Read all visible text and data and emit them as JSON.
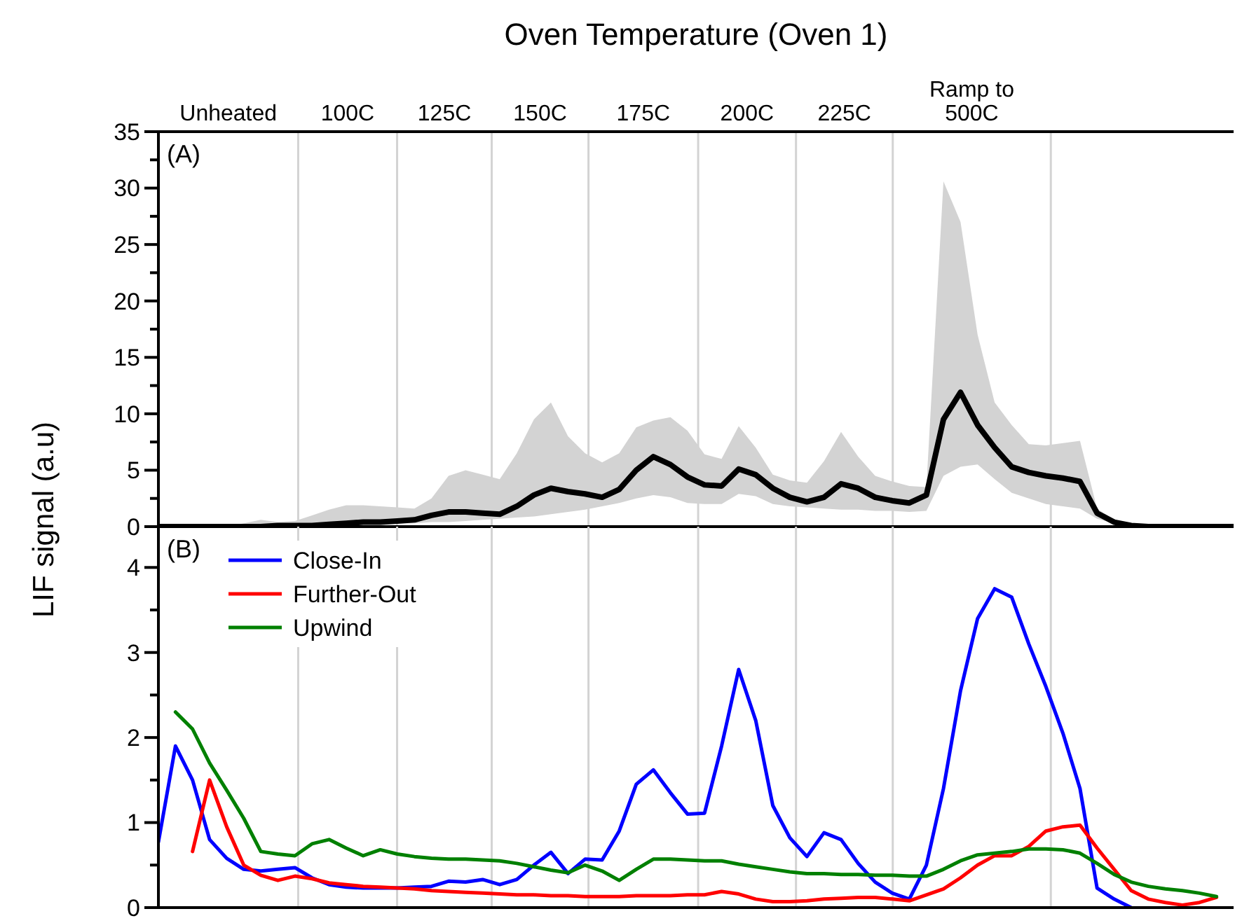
{
  "chart_data": [
    {
      "type": "line",
      "title": "Oven Temperature (Oven 1)",
      "ylabel": "LIF signal (a.u)",
      "annotations": [
        "(A)",
        "Unheated",
        "100C",
        "125C",
        "150C",
        "175C",
        "200C",
        "225C",
        "Ramp to\n500C"
      ],
      "categories": [
        null,
        null,
        null,
        null,
        null,
        null,
        null,
        null,
        null,
        null,
        null,
        null,
        null,
        null,
        null,
        null,
        null,
        null,
        null,
        null,
        null,
        null,
        null,
        null,
        null,
        null,
        null,
        null,
        null,
        null,
        null,
        null,
        null,
        null,
        null,
        null,
        null,
        null,
        null,
        null,
        null,
        null,
        null,
        null,
        null,
        null,
        null,
        null,
        null,
        null,
        null,
        null,
        null,
        null,
        null,
        null,
        null,
        null,
        null,
        null,
        null,
        null,
        null,
        null
      ],
      "ylim": [
        0,
        35
      ],
      "yticks": [
        0,
        {
          "value": 2.5,
          "label": null
        },
        5,
        {
          "value": 7.5,
          "label": null
        },
        10,
        {
          "value": 12.5,
          "label": null
        },
        15,
        {
          "value": 17.5,
          "label": null
        },
        20,
        {
          "value": 22.5,
          "label": null
        },
        25,
        {
          "value": 27.5,
          "label": null
        },
        30,
        {
          "value": 32.5,
          "label": null
        },
        35
      ],
      "tick_labels": "y",
      "grid": false,
      "legend": false,
      "series": [
        {
          "color": "#000000",
          "values": [
            0,
            0,
            0,
            0,
            0,
            0,
            0,
            0.1,
            0.1,
            0.1,
            0.2,
            0.3,
            0.4,
            0.4,
            0.5,
            0.6,
            1.0,
            1.3,
            1.3,
            1.2,
            1.1,
            1.8,
            2.8,
            3.4,
            3.1,
            2.9,
            2.6,
            3.3,
            5.0,
            6.2,
            5.5,
            4.4,
            3.7,
            3.6,
            5.1,
            4.6,
            3.4,
            2.6,
            2.2,
            2.6,
            3.8,
            3.4,
            2.6,
            2.3,
            2.1,
            2.8,
            9.5,
            11.9,
            9.0,
            7.0,
            5.3,
            4.8,
            4.5,
            4.3,
            4.0,
            1.2,
            0.4,
            0.1,
            0,
            0,
            0,
            0,
            0,
            0
          ],
          "lower": [
            0,
            0,
            0,
            0,
            0,
            0,
            0,
            0,
            0.1,
            0.1,
            0.1,
            0.1,
            0.2,
            0.2,
            0.3,
            0.3,
            0.4,
            0.4,
            0.5,
            0.6,
            0.7,
            0.8,
            0.9,
            1.1,
            1.3,
            1.5,
            1.8,
            2.1,
            2.5,
            2.8,
            2.6,
            2.1,
            2.0,
            2.0,
            2.9,
            2.7,
            2.0,
            1.8,
            1.7,
            1.6,
            1.5,
            1.5,
            1.4,
            1.4,
            1.3,
            1.4,
            4.5,
            5.3,
            5.5,
            4.2,
            3.0,
            2.5,
            2.0,
            1.8,
            1.6,
            0.7,
            0.3,
            0.1,
            0,
            0,
            0,
            0,
            0,
            0
          ],
          "upper": [
            0,
            0,
            0,
            0,
            0,
            0.3,
            0.6,
            0.4,
            0.5,
            1.0,
            1.5,
            1.9,
            1.9,
            1.8,
            1.7,
            1.6,
            2.5,
            4.5,
            5.0,
            4.6,
            4.2,
            6.5,
            9.5,
            11.0,
            8.0,
            6.5,
            5.7,
            6.5,
            8.8,
            9.4,
            9.7,
            8.5,
            6.4,
            6.0,
            8.9,
            7.0,
            4.6,
            4.1,
            3.9,
            5.8,
            8.4,
            6.2,
            4.5,
            4.0,
            3.6,
            3.5,
            30.6,
            27,
            17,
            11,
            9.0,
            7.3,
            7.2,
            7.4,
            7.6,
            1.6,
            0.6,
            0.3,
            0,
            0,
            0,
            0,
            0,
            0
          ]
        }
      ]
    },
    {
      "type": "line",
      "annotations": [
        "(B)"
      ],
      "categories": [
        null,
        null,
        null,
        null,
        null,
        null,
        null,
        null,
        null,
        null,
        null,
        null,
        null,
        null,
        null,
        null,
        null,
        null,
        null,
        null,
        null,
        null,
        null,
        null,
        null,
        null,
        null,
        null,
        null,
        null,
        null,
        null,
        null,
        null,
        null,
        null,
        null,
        null,
        null,
        null,
        null,
        null,
        null,
        null,
        null,
        null,
        null,
        null,
        null,
        null,
        null,
        null,
        null,
        null,
        null,
        null,
        null,
        null,
        null,
        null,
        null,
        null,
        null,
        null
      ],
      "ylim": [
        0,
        4.48
      ],
      "yticks": [
        0,
        {
          "value": 0.5,
          "label": null
        },
        1,
        {
          "value": 1.5,
          "label": null
        },
        2,
        {
          "value": 2.5,
          "label": null
        },
        3,
        {
          "value": 3.5,
          "label": null
        },
        4
      ],
      "tick_labels": "y",
      "grid": false,
      "legend": "top left",
      "series": [
        {
          "name": "Close-In",
          "color": "#0000ff",
          "values": [
            0.77,
            1.9,
            1.5,
            0.8,
            0.58,
            0.45,
            0.43,
            0.45,
            0.47,
            0.35,
            0.27,
            0.24,
            0.23,
            0.23,
            0.23,
            0.24,
            0.25,
            0.31,
            0.3,
            0.33,
            0.27,
            0.33,
            0.5,
            0.65,
            0.4,
            0.57,
            0.56,
            0.9,
            1.45,
            1.62,
            1.35,
            1.1,
            1.11,
            1.9,
            2.8,
            2.2,
            1.2,
            0.82,
            0.6,
            0.88,
            0.8,
            0.52,
            0.3,
            0.17,
            0.1,
            0.5,
            1.4,
            2.55,
            3.4,
            3.75,
            3.65,
            3.1,
            2.6,
            2.05,
            1.4,
            0.23,
            0.1,
            0,
            null,
            null,
            null,
            null,
            null,
            null
          ]
        },
        {
          "name": "Further-Out",
          "color": "#ff0000",
          "values": [
            null,
            null,
            0.66,
            1.5,
            0.95,
            0.5,
            0.38,
            0.32,
            0.37,
            0.34,
            0.29,
            0.27,
            0.25,
            0.24,
            0.23,
            0.22,
            0.2,
            0.19,
            0.18,
            0.17,
            0.16,
            0.15,
            0.15,
            0.14,
            0.14,
            0.13,
            0.13,
            0.13,
            0.14,
            0.14,
            0.14,
            0.15,
            0.15,
            0.19,
            0.16,
            0.1,
            0.07,
            0.07,
            0.08,
            0.1,
            0.11,
            0.12,
            0.12,
            0.1,
            0.08,
            0.15,
            0.22,
            0.35,
            0.5,
            0.61,
            0.61,
            0.72,
            0.9,
            0.95,
            0.97,
            0.7,
            0.45,
            0.2,
            0.1,
            0.06,
            0.03,
            0.06,
            0.12,
            null
          ]
        },
        {
          "name": "Upwind",
          "color": "#008000",
          "values": [
            null,
            2.3,
            2.1,
            1.7,
            1.38,
            1.05,
            0.66,
            0.63,
            0.61,
            0.75,
            0.8,
            0.7,
            0.61,
            0.68,
            0.63,
            0.6,
            0.58,
            0.57,
            0.57,
            0.56,
            0.55,
            0.52,
            0.48,
            0.44,
            0.41,
            0.5,
            0.43,
            0.32,
            0.45,
            0.57,
            0.57,
            0.56,
            0.55,
            0.55,
            0.51,
            0.48,
            0.45,
            0.42,
            0.4,
            0.4,
            0.39,
            0.39,
            0.38,
            0.38,
            0.37,
            0.37,
            0.45,
            0.55,
            0.62,
            0.64,
            0.66,
            0.69,
            0.69,
            0.68,
            0.64,
            0.52,
            0.39,
            0.3,
            0.25,
            0.22,
            0.2,
            0.17,
            0.13,
            null
          ]
        }
      ]
    }
  ]
}
